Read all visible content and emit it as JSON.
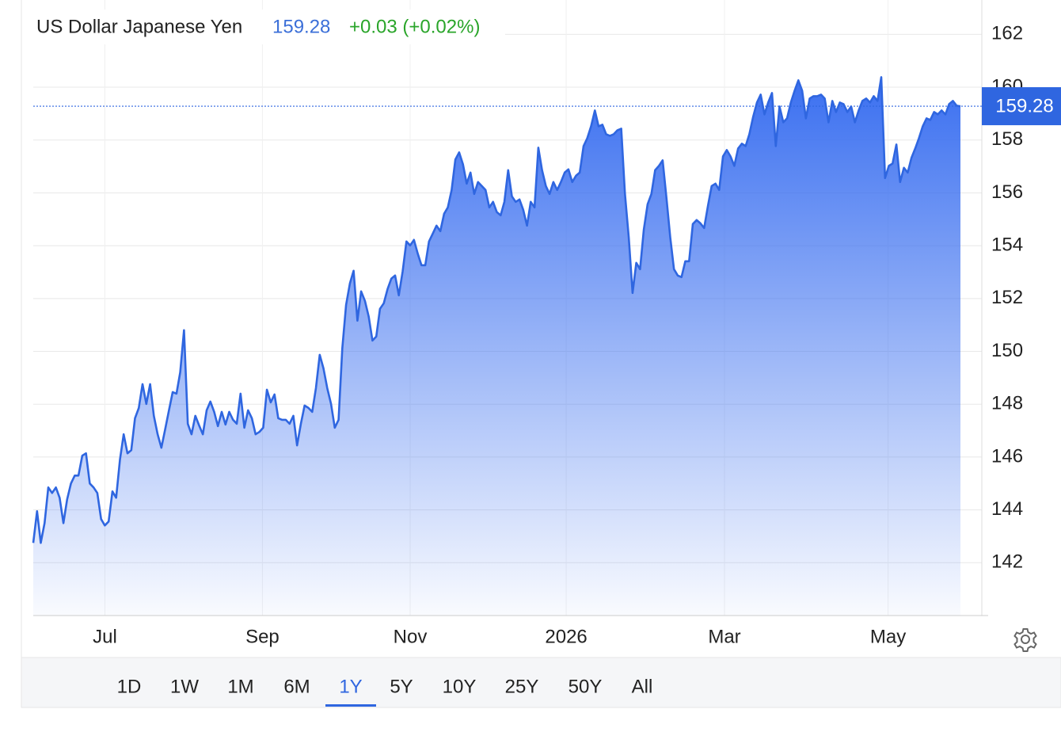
{
  "chart_data": {
    "type": "area",
    "title": "US Dollar Japanese Yen",
    "change": "+0.03 (+0.02%)",
    "line_color": "#2f66e0",
    "fill_color": "#3a6ff0",
    "grid": true,
    "ylim": [
      140,
      163.3
    ],
    "yticks": [
      142,
      144,
      146,
      148,
      150,
      152,
      154,
      156,
      158,
      160,
      162
    ],
    "xlim": [
      0,
      246
    ],
    "xticks": [
      {
        "value": 19,
        "label": "Jul"
      },
      {
        "value": 60.8,
        "label": "Sep"
      },
      {
        "value": 100,
        "label": "Nov"
      },
      {
        "value": 141.4,
        "label": "2026"
      },
      {
        "value": 183.4,
        "label": "Mar"
      },
      {
        "value": 226.8,
        "label": "May"
      }
    ],
    "values": [
      142.75,
      143.95,
      142.75,
      143.5,
      144.85,
      144.64,
      144.85,
      144.46,
      143.5,
      144.4,
      145.0,
      145.3,
      145.3,
      146.05,
      146.14,
      145.0,
      144.85,
      144.64,
      143.65,
      143.41,
      143.56,
      144.7,
      144.46,
      145.9,
      146.86,
      146.14,
      146.26,
      147.47,
      147.86,
      148.76,
      148.01,
      148.76,
      147.56,
      146.86,
      146.35,
      147.05,
      147.77,
      148.46,
      148.4,
      149.21,
      150.8,
      147.26,
      146.86,
      147.56,
      147.2,
      146.86,
      147.77,
      148.1,
      147.71,
      147.17,
      147.71,
      147.23,
      147.71,
      147.41,
      147.26,
      148.4,
      147.11,
      147.77,
      147.47,
      146.86,
      146.95,
      147.11,
      148.55,
      148.07,
      148.37,
      147.47,
      147.41,
      147.41,
      147.26,
      147.56,
      146.44,
      147.26,
      147.95,
      147.86,
      147.71,
      148.61,
      149.87,
      149.36,
      148.61,
      148.01,
      147.11,
      147.41,
      150.11,
      151.76,
      152.57,
      153.05,
      151.16,
      152.27,
      151.91,
      151.31,
      150.41,
      150.56,
      151.61,
      151.82,
      152.36,
      152.75,
      152.87,
      152.12,
      153.02,
      154.16,
      154.01,
      154.22,
      153.71,
      153.26,
      153.26,
      154.16,
      154.46,
      154.76,
      154.55,
      155.21,
      155.45,
      156.11,
      157.26,
      157.53,
      157.08,
      156.35,
      156.77,
      155.96,
      156.41,
      156.26,
      156.11,
      155.45,
      155.66,
      155.27,
      155.15,
      155.66,
      156.86,
      155.87,
      155.66,
      155.75,
      155.36,
      154.76,
      155.66,
      155.45,
      157.71,
      156.86,
      156.26,
      155.96,
      156.41,
      156.11,
      156.41,
      156.77,
      156.89,
      156.41,
      156.65,
      156.77,
      157.77,
      158.07,
      158.52,
      159.12,
      158.52,
      158.58,
      158.22,
      158.16,
      158.22,
      158.37,
      158.43,
      155.96,
      154.31,
      152.21,
      153.35,
      153.11,
      154.61,
      155.57,
      155.96,
      156.86,
      157.02,
      157.23,
      155.81,
      154.31,
      153.11,
      152.87,
      152.81,
      153.41,
      153.41,
      154.82,
      154.97,
      154.85,
      154.67,
      155.51,
      156.26,
      156.35,
      156.11,
      157.38,
      157.62,
      157.38,
      157.02,
      157.68,
      157.86,
      157.77,
      158.22,
      158.88,
      159.42,
      159.72,
      158.97,
      159.42,
      159.78,
      157.77,
      159.27,
      158.67,
      158.82,
      159.42,
      159.87,
      160.26,
      159.87,
      158.82,
      159.57,
      159.66,
      159.66,
      159.72,
      159.57,
      158.67,
      159.48,
      159.06,
      159.42,
      159.36,
      159.06,
      159.27,
      158.67,
      159.12,
      159.48,
      159.57,
      159.42,
      159.66,
      159.48,
      160.38,
      156.56,
      157.02,
      157.11,
      157.83,
      156.41,
      156.95,
      156.77,
      157.32,
      157.68,
      158.07,
      158.52,
      158.82,
      158.76,
      159.06,
      158.97,
      159.12,
      158.97,
      159.36,
      159.48,
      159.3,
      159.28
    ]
  },
  "controls": {
    "ranges": [
      "1D",
      "1W",
      "1M",
      "6M",
      "1Y",
      "5Y",
      "10Y",
      "25Y",
      "50Y",
      "All"
    ],
    "selected": "1Y"
  }
}
